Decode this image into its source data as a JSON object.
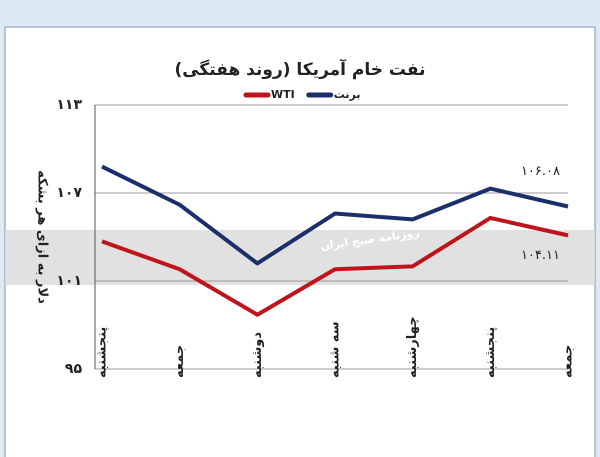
{
  "chart_data": {
    "type": "line",
    "title": "نفت خام آمریکا (روند هفتگی)",
    "y_label": "دلار به ازای هر بشکه",
    "watermark": "روزنامه صبح ایران",
    "categories": [
      "پنجشنبه",
      "جمعه",
      "دوشنبه",
      "سه شنبه",
      "چهارشنبه",
      "پنجشنبه",
      "جمعه"
    ],
    "series": [
      {
        "name": "برنت",
        "color": "#1b2f6b",
        "values": [
          108.8,
          106.2,
          102.2,
          105.6,
          105.2,
          107.3,
          106.08
        ],
        "value_labels": [
          null,
          null,
          null,
          null,
          null,
          null,
          "۱۰۶.۰۸"
        ]
      },
      {
        "name": "WTI",
        "color": "#c0141c",
        "values": [
          103.7,
          101.8,
          98.7,
          101.8,
          102.0,
          105.3,
          104.11
        ],
        "value_labels": [
          null,
          null,
          null,
          null,
          null,
          null,
          "۱۰۴.۱۱"
        ]
      }
    ],
    "ylim": [
      95,
      113
    ],
    "yticks": [
      {
        "value": 95,
        "label": "۹۵"
      },
      {
        "value": 101,
        "label": "۱۰۱"
      },
      {
        "value": 107,
        "label": "۱۰۷"
      },
      {
        "value": 113,
        "label": "۱۱۳"
      }
    ],
    "grid": true
  }
}
